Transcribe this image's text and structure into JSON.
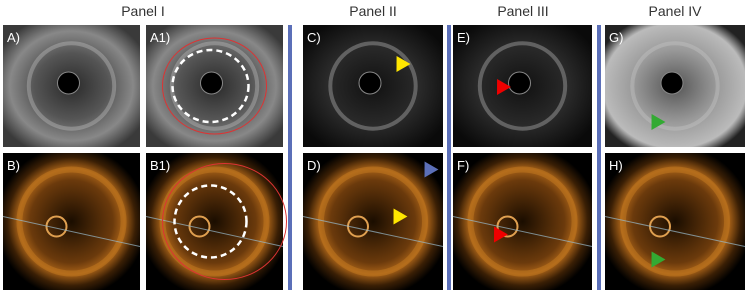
{
  "panels": [
    {
      "title": "Panel I",
      "images": [
        {
          "label": "A)"
        },
        {
          "label": "A1)"
        },
        {
          "label": "B)"
        },
        {
          "label": "B1)"
        }
      ]
    },
    {
      "title": "Panel II",
      "images": [
        {
          "label": "C)"
        },
        {
          "label": "D)"
        }
      ]
    },
    {
      "title": "Panel III",
      "images": [
        {
          "label": "E)"
        },
        {
          "label": "F)"
        }
      ]
    },
    {
      "title": "Panel IV",
      "images": [
        {
          "label": "G)"
        },
        {
          "label": "H)"
        }
      ]
    }
  ]
}
